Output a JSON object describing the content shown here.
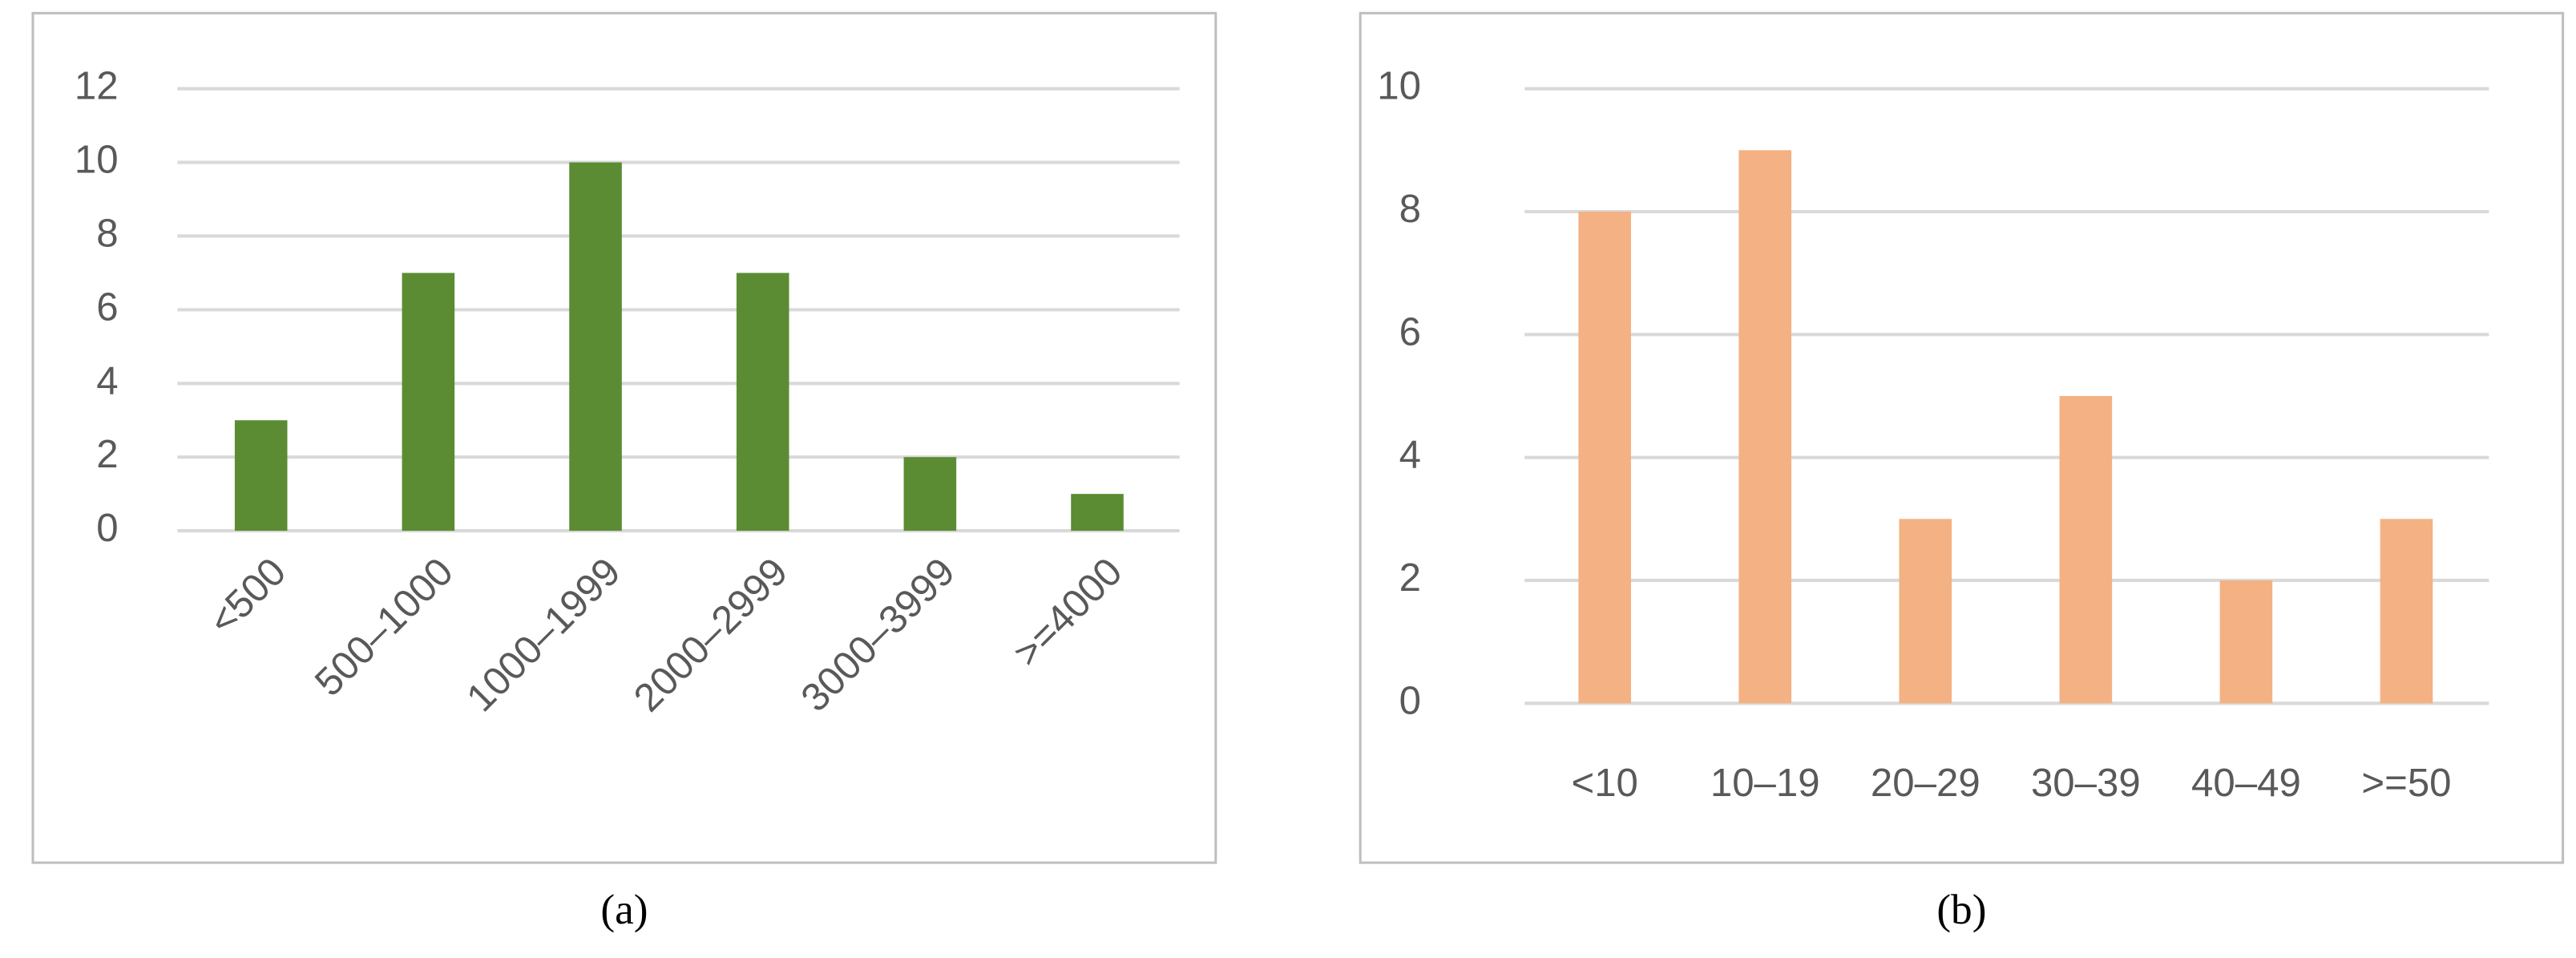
{
  "chart_data": [
    {
      "type": "bar",
      "caption": "(a)",
      "categories": [
        "<500",
        "500–1000",
        "1000–1999",
        "2000–2999",
        "3000–3999",
        ">=4000"
      ],
      "values": [
        3,
        7,
        10,
        7,
        2,
        1
      ],
      "color": "#5b8c33",
      "ylim": [
        0,
        12
      ],
      "yticks": [
        0,
        2,
        4,
        6,
        8,
        10,
        12
      ],
      "grid": true,
      "xlabel_rotation": -45
    },
    {
      "type": "bar",
      "caption": "(b)",
      "categories": [
        "<10",
        "10–19",
        "20–29",
        "30–39",
        "40–49",
        ">=50"
      ],
      "values": [
        8,
        9,
        3,
        5,
        2,
        3
      ],
      "color": "#f4b183",
      "ylim": [
        0,
        10
      ],
      "yticks": [
        0,
        2,
        4,
        6,
        8,
        10
      ],
      "grid": true,
      "xlabel_rotation": 0
    }
  ]
}
